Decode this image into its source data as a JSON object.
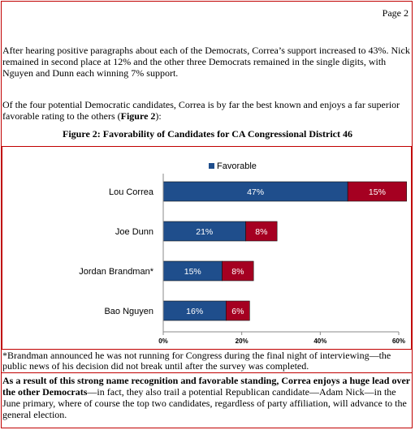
{
  "page_number": "Page 2",
  "paragraphs": {
    "p1": "After hearing positive paragraphs about each of the Democrats, Correa’s support increased to 43%. Nick remained in second place at 12% and the other three Democrats remained in the single digits, with Nguyen and Dunn each winning 7% support.",
    "p2_text": "Of the four potential Democratic candidates, Correa is by far the best known and enjoys a far superior favorable rating to the others (",
    "p2_ref": "Figure 2",
    "p2_end": "):",
    "p3_bold": "As a result of this strong name recognition and favorable standing, Correa enjoys a huge lead over the other Democrats",
    "p3_rest": "—in fact, they also trail a potential Republican candidate—Adam Nick—in the June primary, where of course the top two candidates, regardless of party affiliation, will advance to the general election."
  },
  "figure_title": "Figure 2: Favorability of Candidates for CA Congressional District 46",
  "footnote": "*Brandman announced he was not running for Congress during the final night of interviewing—the public news of his decision did not break until after the survey was completed.",
  "chart_data": {
    "type": "bar",
    "orientation": "horizontal",
    "stacked": true,
    "categories": [
      "Lou Correa",
      "Joe Dunn",
      "Jordan Brandman*",
      "Bao Nguyen"
    ],
    "series": [
      {
        "name": "Favorable",
        "values": [
          47,
          21,
          15,
          16
        ],
        "labels": [
          "47%",
          "21%",
          "15%",
          "16%"
        ],
        "color": "#1f4e8c"
      },
      {
        "name": "",
        "values": [
          15,
          8,
          8,
          6
        ],
        "labels": [
          "15%",
          "8%",
          "8%",
          "6%"
        ],
        "color": "#a50021"
      }
    ],
    "x_ticks": [
      {
        "value": 0,
        "label": "0%"
      },
      {
        "value": 20,
        "label": "20%"
      },
      {
        "value": 40,
        "label": "40%"
      },
      {
        "value": 60,
        "label": "60%"
      }
    ],
    "xlim": [
      0,
      60
    ],
    "legend": "top",
    "grid": false
  }
}
